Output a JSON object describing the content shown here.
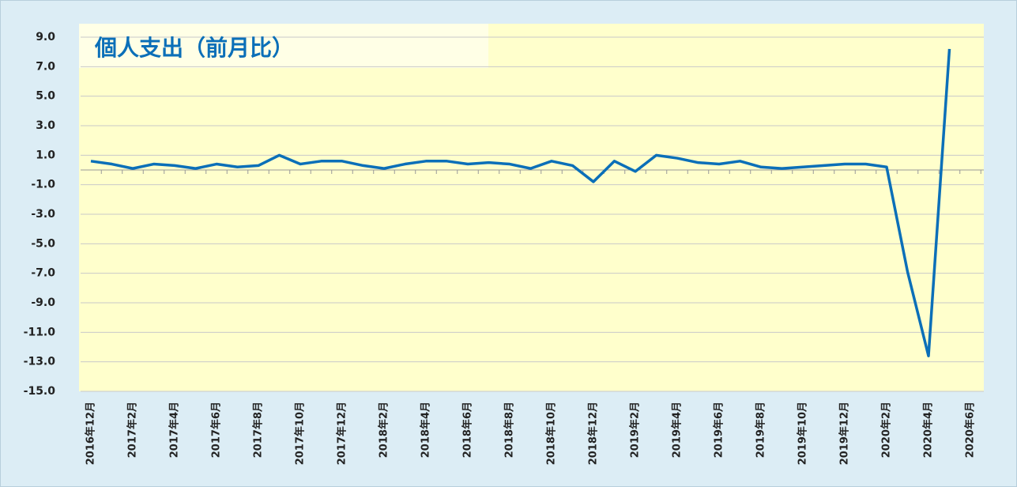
{
  "chart_data": {
    "type": "line",
    "title": "個人支出（前月比）",
    "categories": [
      "2016年12月",
      null,
      "2017年2月",
      null,
      "2017年4月",
      null,
      "2017年6月",
      null,
      "2017年8月",
      null,
      "2017年10月",
      null,
      "2017年12月",
      null,
      "2018年2月",
      null,
      "2018年4月",
      null,
      "2018年6月",
      null,
      "2018年8月",
      null,
      "2018年10月",
      null,
      "2018年12月",
      null,
      "2019年2月",
      null,
      "2019年4月",
      null,
      "2019年6月",
      null,
      "2019年8月",
      null,
      "2019年10月",
      null,
      "2019年12月",
      null,
      "2020年2月",
      null,
      "2020年4月",
      null,
      "2020年6月"
    ],
    "values": [
      0.6,
      0.4,
      0.1,
      0.4,
      0.3,
      0.1,
      0.4,
      0.2,
      0.3,
      1.0,
      0.4,
      0.6,
      0.6,
      0.3,
      0.1,
      0.4,
      0.6,
      0.6,
      0.4,
      0.5,
      0.4,
      0.1,
      0.6,
      0.3,
      -0.8,
      0.6,
      -0.1,
      1.0,
      0.8,
      0.5,
      0.4,
      0.6,
      0.2,
      0.1,
      0.2,
      0.3,
      0.4,
      0.4,
      0.2,
      -6.9,
      -12.6,
      8.2,
      null
    ],
    "color": "#0b6fb8",
    "ylim": [
      -15,
      9
    ],
    "yticks": [
      {
        "value": -15,
        "label": "-15.0"
      },
      {
        "value": -13,
        "label": "-13.0"
      },
      {
        "value": -11,
        "label": "-11.0"
      },
      {
        "value": -9,
        "label": "-9.0"
      },
      {
        "value": -7,
        "label": "-7.0"
      },
      {
        "value": -5,
        "label": "-5.0"
      },
      {
        "value": -3,
        "label": "-3.0"
      },
      {
        "value": -1,
        "label": "-1.0"
      },
      {
        "value": 1,
        "label": "1.0"
      },
      {
        "value": 3,
        "label": "3.0"
      },
      {
        "value": 5,
        "label": "5.0"
      },
      {
        "value": 7,
        "label": "7.0"
      },
      {
        "value": 9,
        "label": "9.0"
      }
    ],
    "grid": true
  }
}
